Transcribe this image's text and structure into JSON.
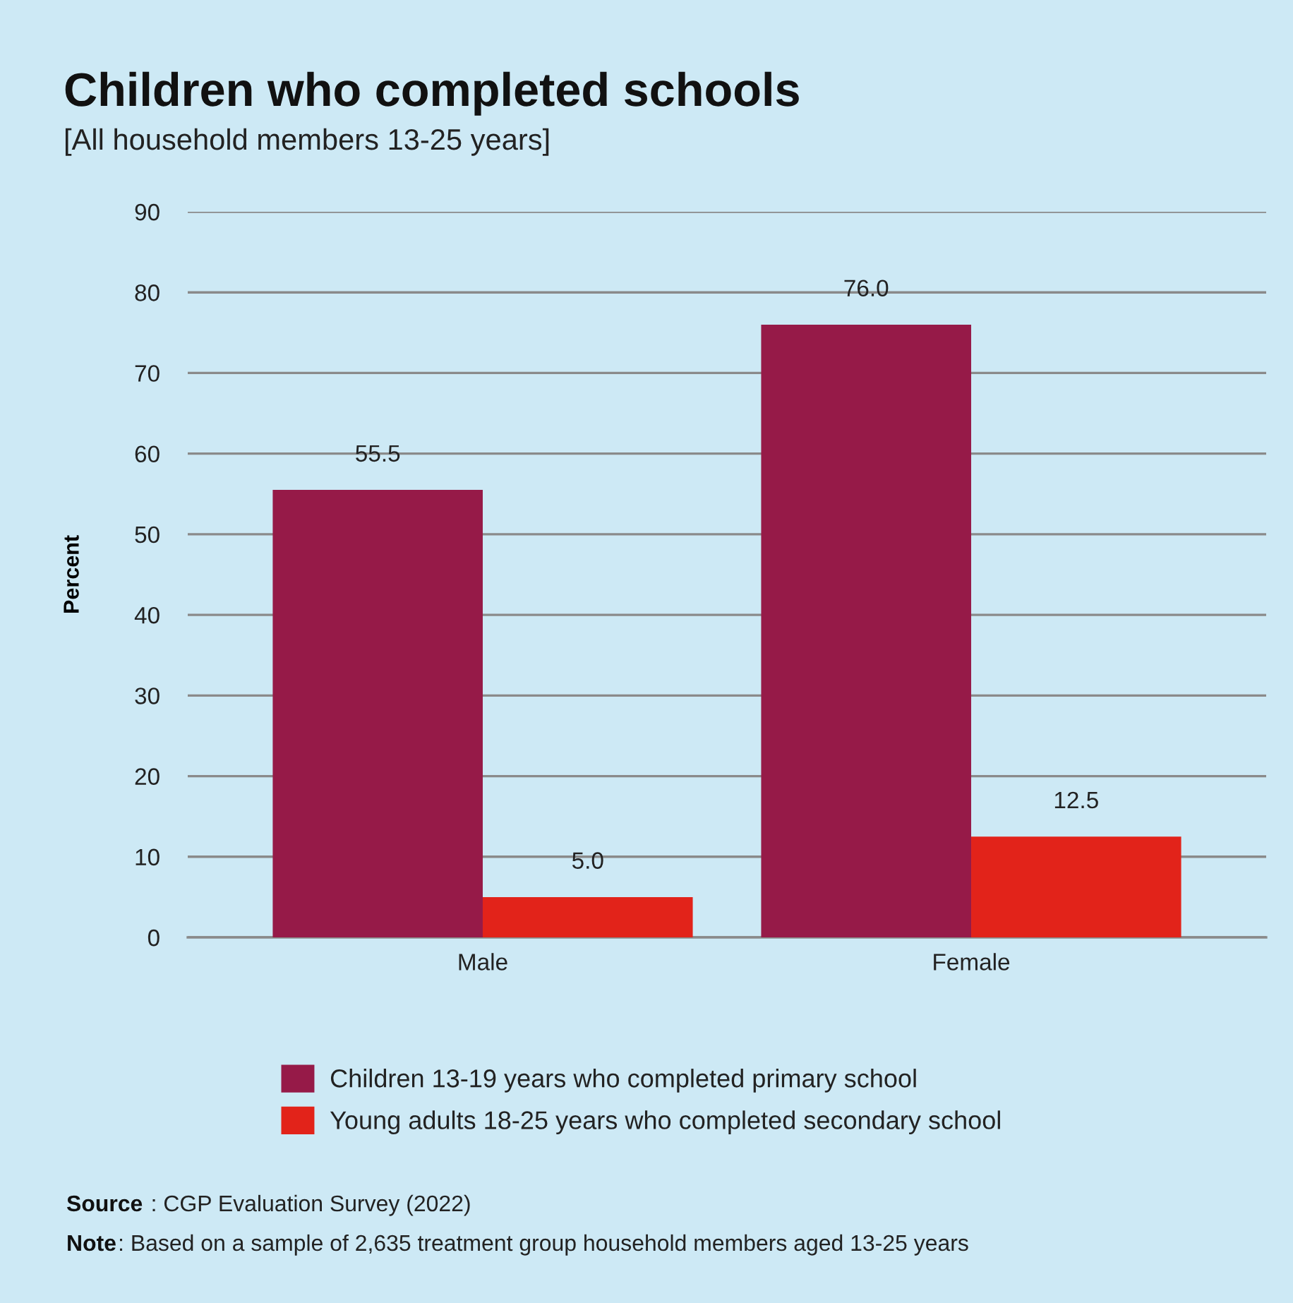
{
  "chart_data": {
    "type": "bar",
    "title": "Children who completed schools",
    "subtitle": "[All household members 13-25 years]",
    "ylabel": "Percent",
    "categories": [
      "Male",
      "Female"
    ],
    "series": [
      {
        "name": "Children 13-19 years who completed primary school",
        "color": "#961a48",
        "values": [
          55.5,
          76.0
        ],
        "value_labels": [
          "55.5",
          "76.0"
        ]
      },
      {
        "name": "Young adults 18-25 years who completed secondary school",
        "color": "#e2231a",
        "values": [
          5.0,
          12.5
        ],
        "value_labels": [
          "5.0",
          "12.5"
        ]
      }
    ],
    "ylim": [
      0,
      90
    ],
    "yticks": [
      0,
      10,
      20,
      30,
      40,
      50,
      60,
      70,
      80,
      90
    ],
    "grid": "y",
    "legend": "bottom",
    "annotations": [
      "Source : CGP Evaluation Survey (2022)",
      "Note: Based on a sample of 2,635 treatment group household members aged 13-25 years"
    ]
  }
}
